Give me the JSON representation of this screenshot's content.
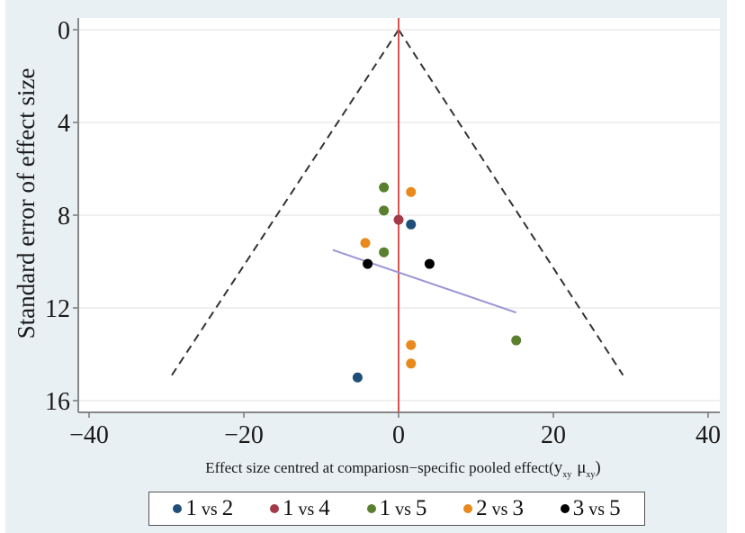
{
  "chart_data": {
    "type": "scatter",
    "title": "",
    "xlabel": "Effect size centred at comparison-specific pooled effect",
    "xlabel_text": "Effect size centred at compariosn−specific pooled effect(",
    "xlabel_math": {
      "y": "y",
      "y_sub": "xy",
      "mu": "μ",
      "mu_sub": "xy",
      "close": ")"
    },
    "ylabel": "Standard error of effect size",
    "xlim": [
      -42,
      42
    ],
    "ylim": [
      16.5,
      -0.5
    ],
    "y_reversed": true,
    "x_ticks": [
      -40,
      -20,
      0,
      20,
      40
    ],
    "x_tick_labels": [
      "−40",
      "−20",
      "0",
      "20",
      "40"
    ],
    "y_ticks": [
      0,
      4,
      8,
      12,
      16
    ],
    "y_tick_labels": [
      "0",
      "4",
      "8",
      "12",
      "16"
    ],
    "grid": "horizontal",
    "legend_position": "bottom",
    "reference_line": {
      "x": 0,
      "color": "#d9534f"
    },
    "funnel": {
      "apex": [
        0,
        0
      ],
      "left_end": [
        -29.5,
        15.0
      ],
      "right_end": [
        29.0,
        14.9
      ],
      "style": "dashed",
      "color": "#333333"
    },
    "regression_line": {
      "start": [
        -8.5,
        9.5
      ],
      "end": [
        15.2,
        12.2
      ],
      "color": "#9b95d6"
    },
    "series": [
      {
        "name": "1 vs 2",
        "color": "#1f4e79",
        "points": [
          [
            1.6,
            8.4
          ],
          [
            -5.3,
            15.0
          ]
        ]
      },
      {
        "name": "1 vs 4",
        "color": "#a23a47",
        "points": [
          [
            0.0,
            8.2
          ]
        ]
      },
      {
        "name": "1 vs 5",
        "color": "#5a7f2e",
        "points": [
          [
            -1.9,
            6.8
          ],
          [
            -1.9,
            7.8
          ],
          [
            -1.9,
            9.6
          ],
          [
            15.2,
            13.4
          ]
        ]
      },
      {
        "name": "2 vs 3",
        "color": "#e8891c",
        "points": [
          [
            1.6,
            7.0
          ],
          [
            -4.3,
            9.2
          ],
          [
            1.6,
            13.6
          ],
          [
            1.6,
            14.4
          ]
        ]
      },
      {
        "name": "3 vs 5",
        "color": "#000000",
        "points": [
          [
            -4.0,
            10.1
          ],
          [
            4.0,
            10.1
          ]
        ]
      }
    ]
  },
  "legend": {
    "items": [
      {
        "num1": "1",
        "vs": "vs",
        "num2": "2",
        "color": "#1f4e79"
      },
      {
        "num1": "1",
        "vs": "vs",
        "num2": "4",
        "color": "#a23a47"
      },
      {
        "num1": "1",
        "vs": "vs",
        "num2": "5",
        "color": "#5a7f2e"
      },
      {
        "num1": "2",
        "vs": "vs",
        "num2": "3",
        "color": "#e8891c"
      },
      {
        "num1": "3",
        "vs": "vs",
        "num2": "5",
        "color": "#000000"
      }
    ]
  }
}
